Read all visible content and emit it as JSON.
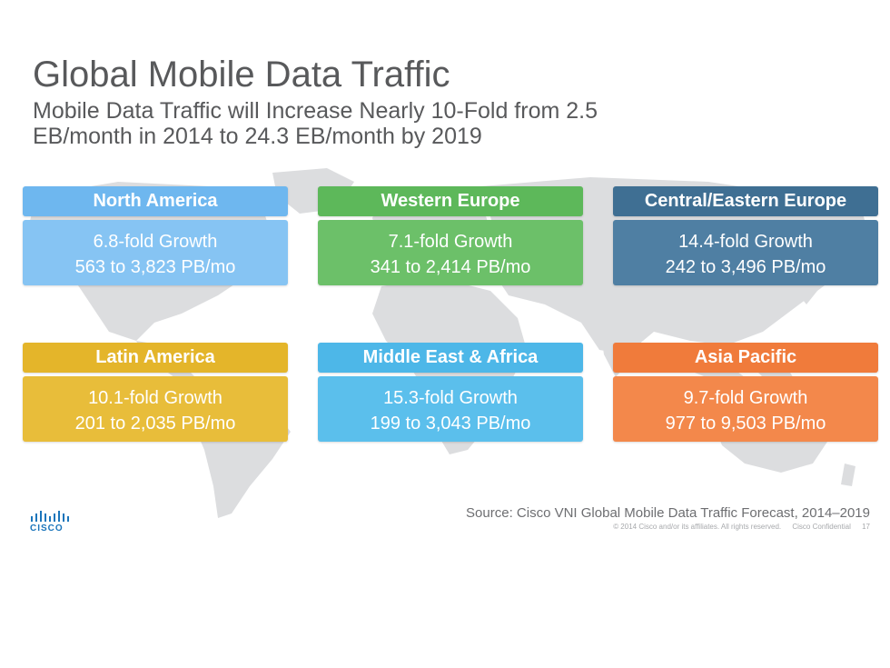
{
  "slide": {
    "title": "Global Mobile Data Traffic",
    "subtitle": "Mobile Data Traffic will Increase Nearly 10-Fold from 2.5 EB/month in 2014 to 24.3 EB/month by 2019",
    "source": "Source: Cisco VNI Global Mobile Data Traffic Forecast, 2014–2019",
    "copyright": "© 2014  Cisco and/or its affiliates. All rights reserved.",
    "confidential": "Cisco Confidential",
    "page_number": "17",
    "logo_text": "CISCO"
  },
  "regions": [
    {
      "name": "North America",
      "growth": "6.8-fold Growth",
      "traffic": "563 to 3,823 PB/mo",
      "header_color": "#6eb7ef",
      "body_color": "#86c4f3"
    },
    {
      "name": "Western Europe",
      "growth": "7.1-fold Growth",
      "traffic": "341 to 2,414 PB/mo",
      "header_color": "#5db85a",
      "body_color": "#6cc069"
    },
    {
      "name": "Central/Eastern Europe",
      "growth": "14.4-fold Growth",
      "traffic": "242 to 3,496 PB/mo",
      "header_color": "#3f6f93",
      "body_color": "#4f7fa3"
    },
    {
      "name": "Latin America",
      "growth": "10.1-fold Growth",
      "traffic": "201 to 2,035 PB/mo",
      "header_color": "#e4b52a",
      "body_color": "#e8bd3a"
    },
    {
      "name": "Middle East & Africa",
      "growth": "15.3-fold Growth",
      "traffic": "199 to 3,043 PB/mo",
      "header_color": "#4db7e8",
      "body_color": "#5bbfec"
    },
    {
      "name": "Asia Pacific",
      "growth": "9.7-fold Growth",
      "traffic": "977 to 9,503 PB/mo",
      "header_color": "#f07b3b",
      "body_color": "#f3884b"
    }
  ]
}
